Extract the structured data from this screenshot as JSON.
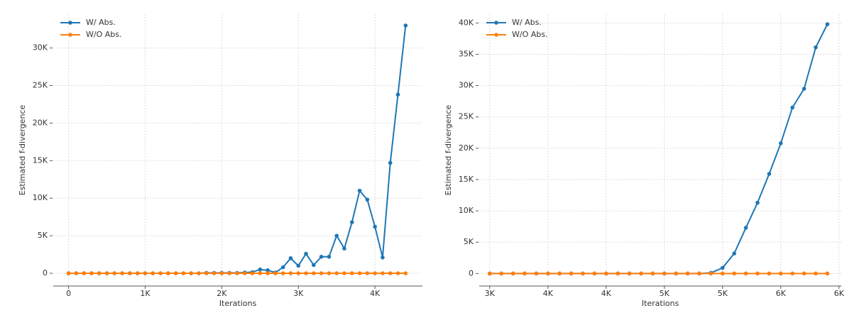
{
  "chart_data": [
    {
      "type": "line",
      "xlabel": "Iterations",
      "ylabel": "Estimated f-divergence",
      "x": [
        0,
        100,
        200,
        300,
        400,
        500,
        600,
        700,
        800,
        900,
        1000,
        1100,
        1200,
        1300,
        1400,
        1500,
        1600,
        1700,
        1800,
        1900,
        2000,
        2100,
        2200,
        2300,
        2400,
        2500,
        2600,
        2700,
        2800,
        2900,
        3000,
        3100,
        3200,
        3300,
        3400,
        3500,
        3600,
        3700,
        3800,
        3900,
        4000,
        4100,
        4200,
        4300,
        4400
      ],
      "series": [
        {
          "name": "W/ Abs.",
          "color": "#1f77b4",
          "values": [
            0,
            0,
            0,
            0,
            0,
            0,
            0,
            0,
            0,
            0,
            0,
            0,
            0,
            0,
            0,
            0,
            0,
            0,
            50,
            50,
            50,
            50,
            50,
            100,
            150,
            500,
            400,
            100,
            800,
            2000,
            1000,
            2600,
            1100,
            2200,
            2200,
            5000,
            3300,
            6800,
            11000,
            9800,
            6200,
            2100,
            14700,
            23800,
            33000
          ]
        },
        {
          "name": "W/O Abs.",
          "color": "#ff7f0e",
          "values": [
            0,
            0,
            0,
            0,
            0,
            0,
            0,
            0,
            0,
            0,
            0,
            0,
            0,
            0,
            0,
            0,
            0,
            0,
            0,
            0,
            0,
            0,
            0,
            0,
            0,
            0,
            0,
            0,
            0,
            0,
            0,
            0,
            0,
            0,
            0,
            0,
            0,
            0,
            0,
            0,
            0,
            0,
            0,
            0,
            0
          ]
        }
      ],
      "xlim": [
        -200,
        4620
      ],
      "ylim": [
        -1700,
        34500
      ],
      "xticks": [
        0,
        {
          "value": 1000,
          "label": "1K"
        },
        {
          "value": 2000,
          "label": "2K"
        },
        {
          "value": 3000,
          "label": "3K"
        },
        {
          "value": 4000,
          "label": "4K"
        }
      ],
      "yticks": [
        0,
        {
          "value": 5000,
          "label": "5K"
        },
        {
          "value": 10000,
          "label": "10K"
        },
        {
          "value": 15000,
          "label": "15K"
        },
        {
          "value": 20000,
          "label": "20K"
        },
        {
          "value": 25000,
          "label": "25K"
        },
        {
          "value": 30000,
          "label": "30K"
        }
      ],
      "grid": true,
      "legend": "upper left"
    },
    {
      "type": "line",
      "xlabel": "Iterations",
      "ylabel": "Estimated f-divergence",
      "x": [
        3000,
        3100,
        3200,
        3300,
        3400,
        3500,
        3600,
        3700,
        3800,
        3900,
        4000,
        4100,
        4200,
        4300,
        4400,
        4500,
        4600,
        4700,
        4800,
        4900,
        5000,
        5100,
        5200,
        5300,
        5400,
        5500,
        5600,
        5700,
        5800,
        5900
      ],
      "series": [
        {
          "name": "W/ Abs.",
          "color": "#1f77b4",
          "values": [
            0,
            0,
            0,
            0,
            0,
            0,
            0,
            0,
            0,
            0,
            0,
            0,
            0,
            0,
            0,
            0,
            0,
            0,
            0,
            100,
            900,
            3200,
            7300,
            11300,
            15900,
            20800,
            26500,
            29500,
            36100,
            39800
          ]
        },
        {
          "name": "W/O Abs.",
          "color": "#ff7f0e",
          "values": [
            0,
            0,
            0,
            0,
            0,
            0,
            0,
            0,
            0,
            0,
            0,
            0,
            0,
            0,
            0,
            0,
            0,
            0,
            0,
            0,
            0,
            0,
            0,
            0,
            0,
            0,
            0,
            0,
            0,
            0
          ]
        }
      ],
      "xlim": [
        2910,
        6020
      ],
      "ylim": [
        -2000,
        41400
      ],
      "xticks": [
        {
          "value": 3000,
          "label": "3K"
        },
        {
          "value": 3500,
          "label": "4K"
        },
        {
          "value": 4000,
          "label": "4K"
        },
        {
          "value": 4500,
          "label": "5K"
        },
        {
          "value": 5000,
          "label": "5K"
        },
        {
          "value": 5500,
          "label": "6K"
        },
        {
          "value": 6000,
          "label": "6K"
        }
      ],
      "yticks": [
        0,
        {
          "value": 5000,
          "label": "5K"
        },
        {
          "value": 10000,
          "label": "10K"
        },
        {
          "value": 15000,
          "label": "15K"
        },
        {
          "value": 20000,
          "label": "20K"
        },
        {
          "value": 25000,
          "label": "25K"
        },
        {
          "value": 30000,
          "label": "30K"
        },
        {
          "value": 35000,
          "label": "35K"
        },
        {
          "value": 40000,
          "label": "40K"
        }
      ],
      "grid": true,
      "legend": "upper left"
    }
  ]
}
